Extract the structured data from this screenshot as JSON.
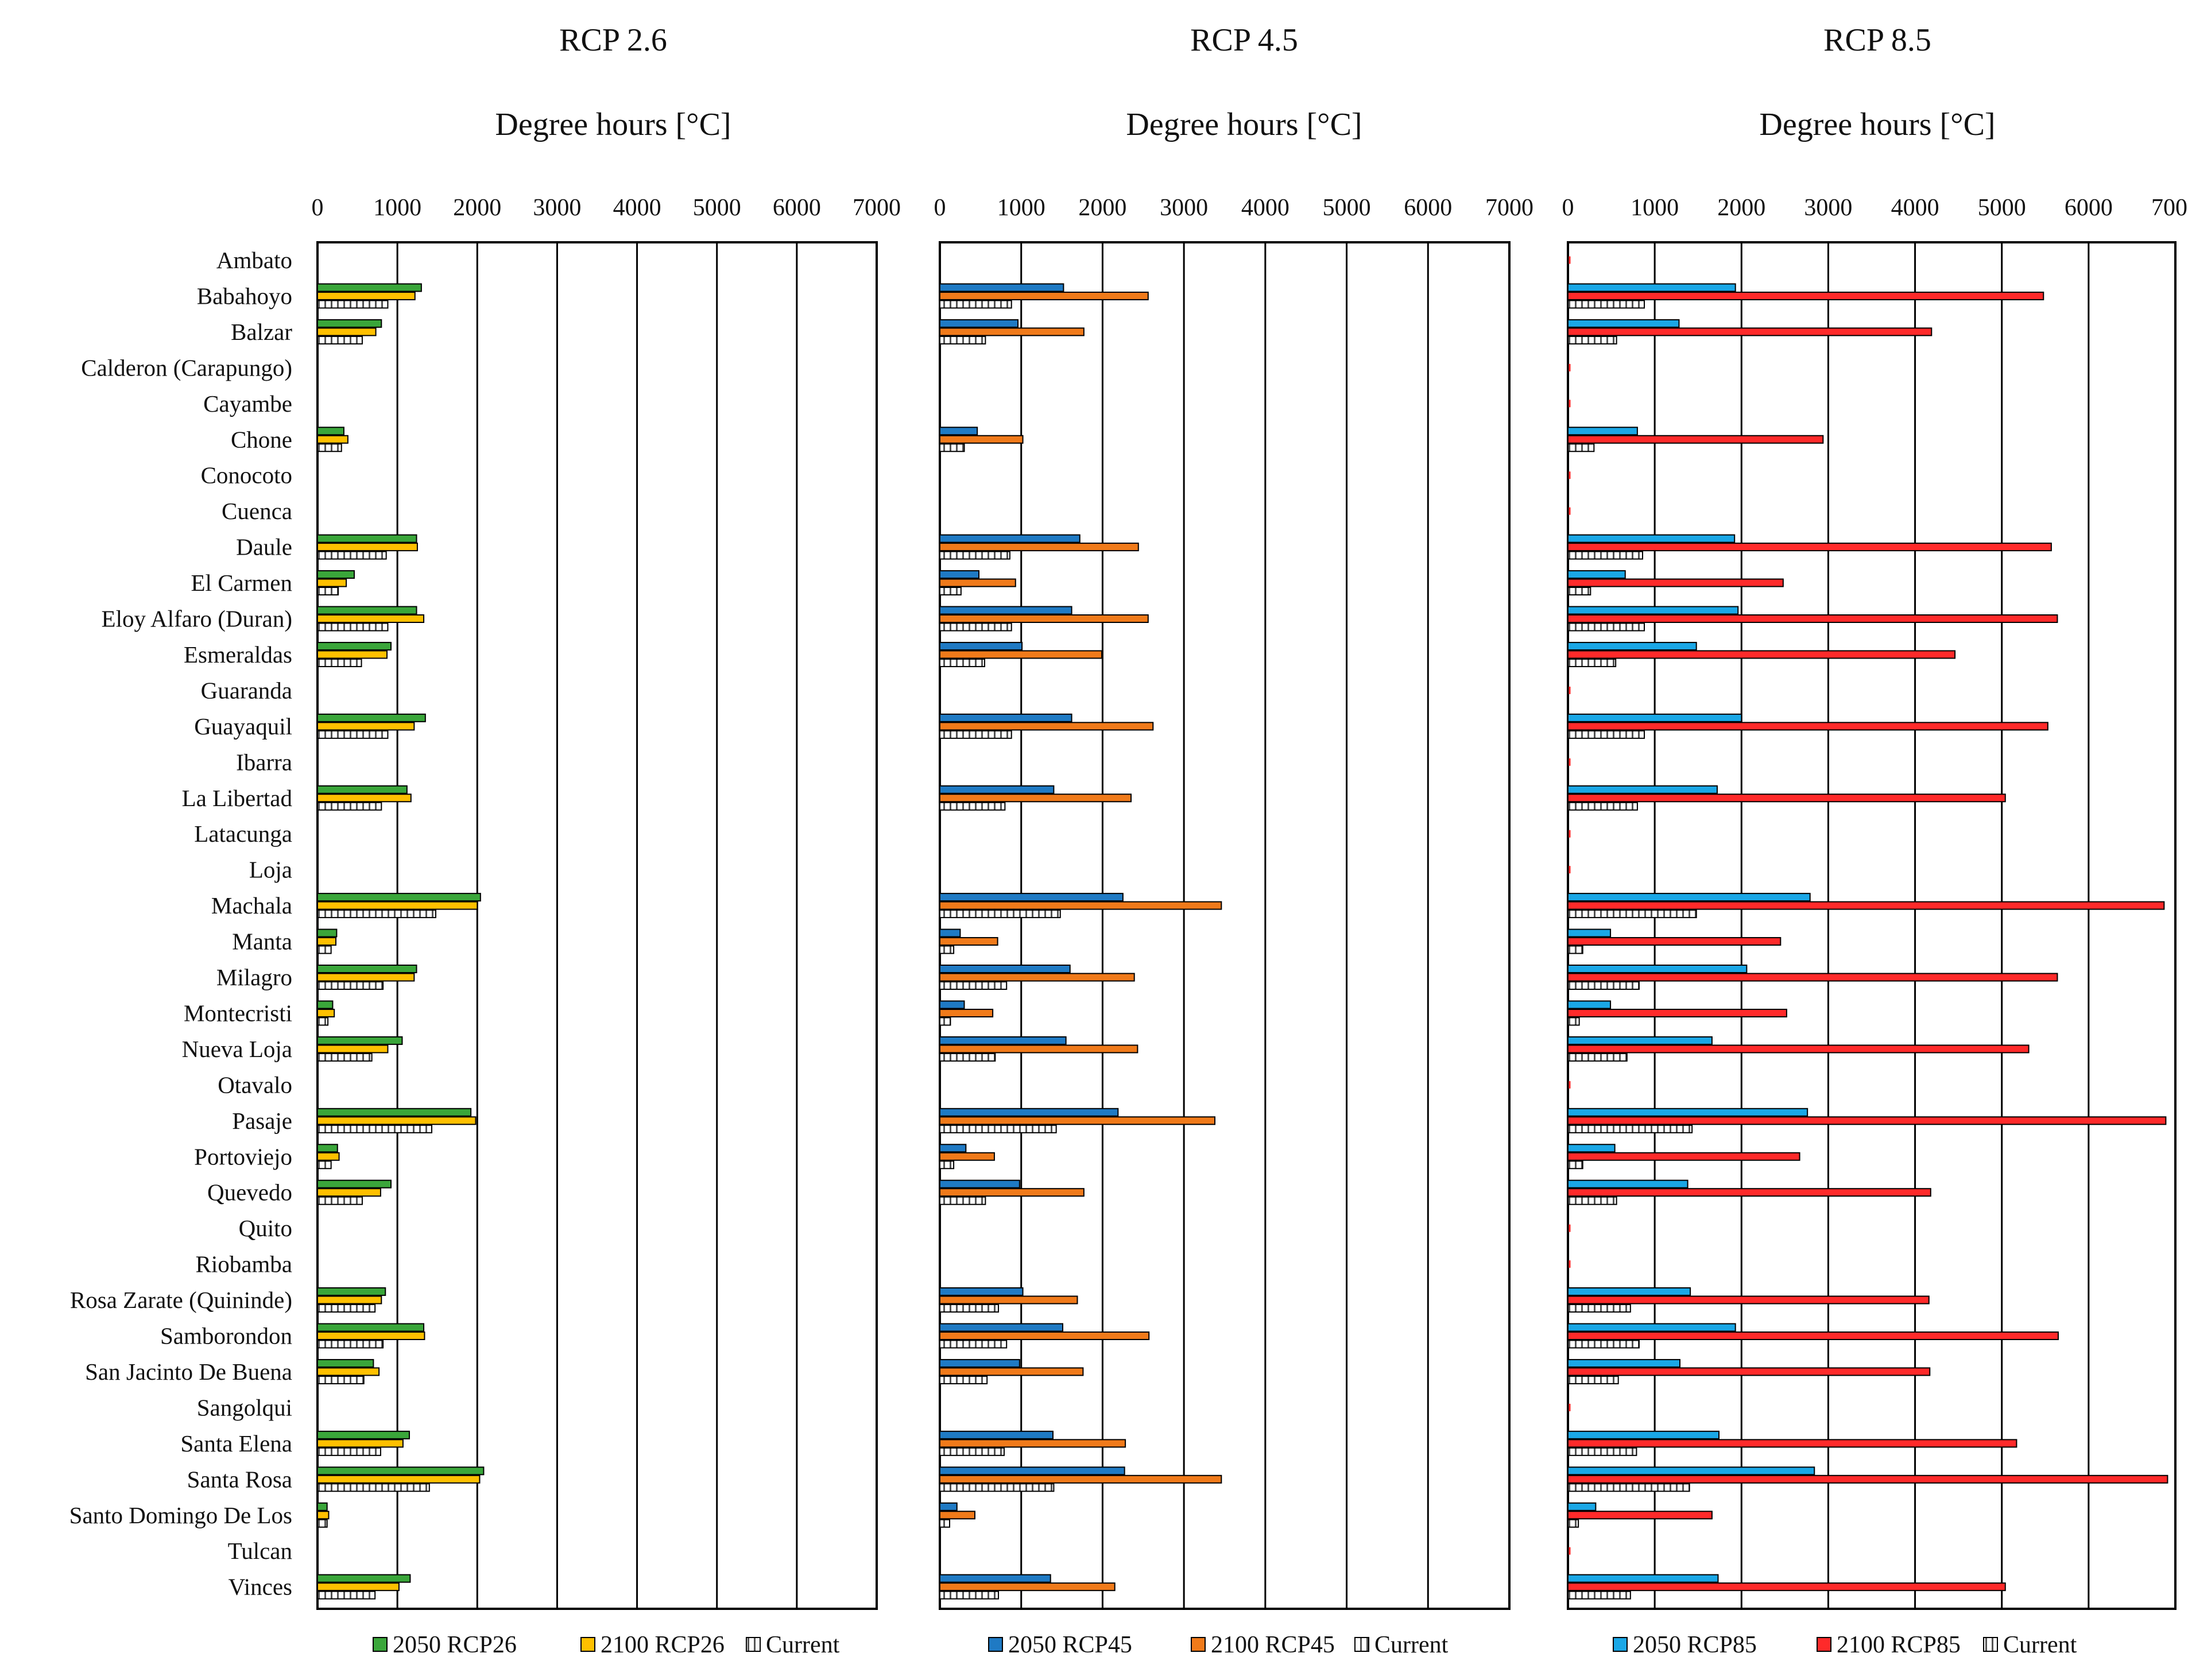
{
  "chart_data": {
    "type": "bar",
    "orientation": "horizontal",
    "categories": [
      "Ambato",
      "Babahoyo",
      "Balzar",
      "Calderon (Carapungo)",
      "Cayambe",
      "Chone",
      "Conocoto",
      "Cuenca",
      "Daule",
      "El Carmen",
      "Eloy Alfaro (Duran)",
      "Esmeraldas",
      "Guaranda",
      "Guayaquil",
      "Ibarra",
      "La Libertad",
      "Latacunga",
      "Loja",
      "Machala",
      "Manta",
      "Milagro",
      "Montecristi",
      "Nueva Loja",
      "Otavalo",
      "Pasaje",
      "Portoviejo",
      "Quevedo",
      "Quito",
      "Riobamba",
      "Rosa Zarate (Quininde)",
      "Samborondon",
      "San Jacinto De Buena",
      "Sangolqui",
      "Santa Elena",
      "Santa Rosa",
      "Santo Domingo De Los",
      "Tulcan",
      "Vinces"
    ],
    "xlim": [
      0,
      7000
    ],
    "xticks": [
      0,
      1000,
      2000,
      3000,
      4000,
      5000,
      6000,
      7000
    ],
    "grid": "vertical",
    "legend_position": "bottom",
    "panels": [
      {
        "title": "RCP 2.6",
        "xlabel": "Degree hours [°C]",
        "series": [
          {
            "name": "2050 RCP26",
            "color": "#3aa63a",
            "pattern": "solid",
            "values": [
              0,
              1300,
              800,
              0,
              0,
              330,
              0,
              0,
              1240,
              460,
              1240,
              920,
              0,
              1350,
              0,
              1120,
              0,
              0,
              2040,
              240,
              1240,
              190,
              1060,
              0,
              1920,
              250,
              920,
              0,
              0,
              850,
              1330,
              700,
              0,
              1150,
              2080,
              120,
              0,
              1160
            ]
          },
          {
            "name": "2100 RCP26",
            "color": "#ffc000",
            "pattern": "solid",
            "values": [
              0,
              1220,
              730,
              0,
              0,
              380,
              0,
              0,
              1250,
              360,
              1330,
              870,
              0,
              1210,
              0,
              1170,
              0,
              0,
              2000,
              230,
              1210,
              210,
              880,
              0,
              1980,
              270,
              790,
              0,
              0,
              800,
              1340,
              770,
              0,
              1070,
              2030,
              140,
              0,
              1020
            ]
          },
          {
            "name": "Current",
            "color": "#ffffff",
            "pattern": "hatch",
            "values": [
              0,
              880,
              560,
              0,
              0,
              300,
              0,
              0,
              860,
              260,
              880,
              550,
              0,
              880,
              0,
              800,
              0,
              0,
              1480,
              170,
              820,
              130,
              680,
              0,
              1430,
              170,
              560,
              0,
              0,
              720,
              820,
              580,
              0,
              790,
              1400,
              120,
              0,
              720
            ]
          }
        ]
      },
      {
        "title": "RCP 4.5",
        "xlabel": "Degree hours [°C]",
        "series": [
          {
            "name": "2050 RCP45",
            "color": "#1f7ac4",
            "pattern": "solid",
            "values": [
              0,
              1520,
              960,
              0,
              0,
              460,
              0,
              0,
              1720,
              480,
              1620,
              1010,
              0,
              1620,
              0,
              1400,
              0,
              0,
              2250,
              250,
              1600,
              300,
              1550,
              0,
              2190,
              320,
              980,
              0,
              0,
              1020,
              1510,
              980,
              0,
              1390,
              2270,
              210,
              0,
              1360
            ]
          },
          {
            "name": "2100 RCP45",
            "color": "#f07a1a",
            "pattern": "solid",
            "values": [
              0,
              2560,
              1770,
              0,
              0,
              1020,
              0,
              0,
              2440,
              930,
              2560,
              1990,
              0,
              2620,
              0,
              2350,
              0,
              0,
              3460,
              710,
              2390,
              650,
              2430,
              0,
              3380,
              670,
              1770,
              0,
              0,
              1690,
              2570,
              1760,
              0,
              2280,
              3460,
              430,
              0,
              2150
            ]
          },
          {
            "name": "Current",
            "color": "#ffffff",
            "pattern": "hatch",
            "values": [
              0,
              880,
              560,
              0,
              0,
              300,
              0,
              0,
              860,
              260,
              880,
              550,
              0,
              880,
              0,
              800,
              0,
              0,
              1480,
              170,
              820,
              130,
              680,
              0,
              1430,
              170,
              560,
              0,
              0,
              720,
              820,
              580,
              0,
              790,
              1400,
              120,
              0,
              720
            ]
          }
        ]
      },
      {
        "title": "RCP 8.5",
        "xlabel": "Degree hours [°C]",
        "series": [
          {
            "name": "2050 RCP85",
            "color": "#1aa7e6",
            "pattern": "solid",
            "values": [
              0,
              1930,
              1280,
              0,
              0,
              800,
              0,
              0,
              1920,
              660,
              1960,
              1480,
              0,
              2000,
              0,
              1720,
              0,
              0,
              2790,
              490,
              2060,
              490,
              1660,
              0,
              2760,
              540,
              1380,
              0,
              0,
              1410,
              1930,
              1290,
              0,
              1740,
              2840,
              320,
              0,
              1730
            ]
          },
          {
            "name": "2100 RCP85",
            "color": "#ff2a2a",
            "pattern": "solid",
            "values": [
              0,
              5480,
              4190,
              0,
              0,
              2940,
              0,
              0,
              5570,
              2480,
              5640,
              4460,
              0,
              5530,
              0,
              5040,
              0,
              0,
              6870,
              2450,
              5640,
              2520,
              5310,
              0,
              6890,
              2670,
              4180,
              0,
              0,
              4160,
              5650,
              4170,
              0,
              5170,
              6910,
              1660,
              0,
              5040
            ]
          },
          {
            "name": "Current",
            "color": "#ffffff",
            "pattern": "hatch",
            "values": [
              0,
              880,
              560,
              0,
              0,
              300,
              0,
              0,
              860,
              260,
              880,
              550,
              0,
              880,
              0,
              800,
              0,
              0,
              1480,
              170,
              820,
              130,
              680,
              0,
              1430,
              170,
              560,
              0,
              0,
              720,
              820,
              580,
              0,
              790,
              1400,
              120,
              0,
              720
            ]
          }
        ]
      }
    ]
  }
}
